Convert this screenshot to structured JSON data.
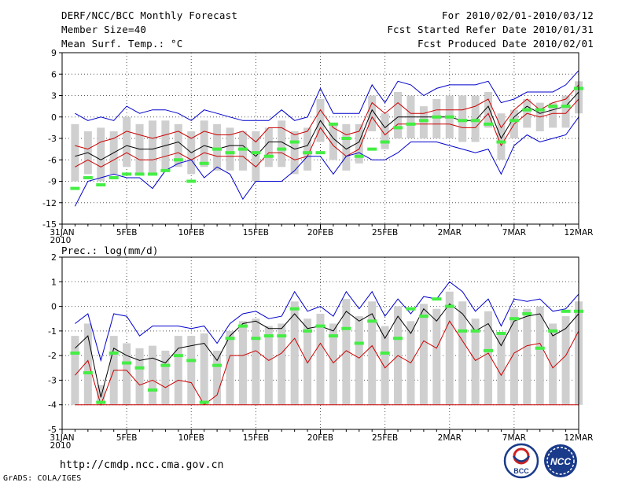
{
  "header": {
    "title": "DERF/NCC/BCC Monthly Forecast",
    "member_size": "Member Size=40",
    "variable": "Mean Surf. Temp.: °C",
    "period": "For 2010/02/01-2010/03/12",
    "started": "Fcst Started Refer Date 2010/01/31",
    "produced": "Fcst Produced Date 2010/02/01"
  },
  "footer": {
    "url": "http://cmdp.ncc.cma.gov.cn",
    "grads": "GrADS: COLA/IGES",
    "logo1_text": "BCC",
    "logo2_text": "NCC"
  },
  "colors": {
    "box": "#cfcfcf",
    "mean": "#000000",
    "ensemble_low": "#cc0000",
    "extreme": "#0000cc",
    "observed": "#44ee44",
    "grid": "#555555"
  },
  "x_ticks": [
    {
      "day": 0,
      "label": "31JAN",
      "sub": "2010"
    },
    {
      "day": 5,
      "label": "5FEB"
    },
    {
      "day": 10,
      "label": "10FEB"
    },
    {
      "day": 15,
      "label": "15FEB"
    },
    {
      "day": 20,
      "label": "20FEB"
    },
    {
      "day": 25,
      "label": "25FEB"
    },
    {
      "day": 30,
      "label": "2MAR"
    },
    {
      "day": 35,
      "label": "7MAR"
    },
    {
      "day": 40,
      "label": "12MAR"
    }
  ],
  "chart_data": [
    {
      "type": "line",
      "title": "Mean Surf. Temp.: °C",
      "ylim": [
        -15,
        9
      ],
      "yticks": [
        -15,
        -12,
        -9,
        -6,
        -3,
        0,
        3,
        6,
        9
      ],
      "grid": true,
      "x": [
        1,
        2,
        3,
        4,
        5,
        6,
        7,
        8,
        9,
        10,
        11,
        12,
        13,
        14,
        15,
        16,
        17,
        18,
        19,
        20,
        21,
        22,
        23,
        24,
        25,
        26,
        27,
        28,
        29,
        30,
        31,
        32,
        33,
        34,
        35,
        36,
        37,
        38,
        39,
        40
      ],
      "series": [
        {
          "name": "max",
          "values": [
            0.5,
            -0.5,
            0,
            -0.5,
            1.5,
            0.5,
            1,
            1,
            0.5,
            -0.5,
            1,
            0.5,
            0,
            -0.5,
            -0.5,
            -0.5,
            1,
            -0.5,
            0,
            4,
            0.5,
            0.5,
            0.5,
            4.5,
            2,
            5,
            4.5,
            3,
            4,
            4.5,
            4.5,
            4.5,
            5,
            2,
            2.5,
            3.5,
            3.5,
            3.5,
            4.5,
            6.5
          ]
        },
        {
          "name": "upper",
          "values": [
            -4,
            -4.5,
            -3.5,
            -3,
            -2,
            -2.5,
            -3,
            -2.5,
            -2,
            -3,
            -2,
            -2.5,
            -2.5,
            -2,
            -3.5,
            -1.5,
            -1.5,
            -2.5,
            -2,
            1,
            -1.5,
            -2.5,
            -2,
            2,
            0.5,
            2,
            0.5,
            0.5,
            1,
            1,
            1,
            1.5,
            2.5,
            -1.5,
            1,
            2.5,
            1,
            2,
            2.5,
            4.5
          ]
        },
        {
          "name": "mean",
          "values": [
            -5.5,
            -5,
            -6,
            -5,
            -4,
            -4.5,
            -4.5,
            -4,
            -3.5,
            -5,
            -4,
            -4.5,
            -4,
            -4,
            -5.5,
            -3.5,
            -3.5,
            -4.5,
            -4,
            -0.5,
            -3,
            -4.5,
            -3.5,
            1,
            -1.5,
            0,
            0,
            0,
            0,
            0,
            -0.5,
            -0.5,
            1.5,
            -3,
            0,
            1.5,
            0.5,
            1,
            1.5,
            3.5
          ]
        },
        {
          "name": "lower",
          "values": [
            -7,
            -6,
            -7,
            -6,
            -5,
            -6,
            -6,
            -5.5,
            -5,
            -6,
            -5,
            -5.5,
            -5.5,
            -5.5,
            -7,
            -5,
            -5,
            -6,
            -5.5,
            -1.5,
            -4,
            -5.5,
            -4.5,
            0,
            -2.5,
            -1,
            -1,
            -1,
            -1,
            -1,
            -1.5,
            -1.5,
            0.5,
            -4,
            -1,
            0.5,
            0,
            0.5,
            0.5,
            2.5
          ]
        },
        {
          "name": "min",
          "values": [
            -12.5,
            -9,
            -8.5,
            -8,
            -8.5,
            -8.5,
            -10,
            -7.5,
            -6.5,
            -6,
            -8.5,
            -7,
            -8,
            -11.5,
            -9,
            -9,
            -9,
            -7.5,
            -5.5,
            -5.5,
            -8,
            -5.5,
            -5,
            -6,
            -6,
            -5,
            -3.5,
            -3.5,
            -3.5,
            -4,
            -4.5,
            -5,
            -4.5,
            -8,
            -4,
            -2.5,
            -3.5,
            -3,
            -2.5,
            0
          ]
        },
        {
          "name": "observed",
          "values": [
            -10,
            -8.5,
            -9.5,
            -8.5,
            -8,
            -8,
            -8,
            -7.5,
            -6,
            -9,
            -6.5,
            -4.5,
            -5,
            -4.5,
            -5,
            -5.5,
            -4.5,
            -3.5,
            -5,
            -5,
            -1,
            -3,
            -5.5,
            -4.5,
            -3.5,
            -1.5,
            -1,
            -0.5,
            0,
            0,
            -0.5,
            -0.5,
            -1,
            -3.5,
            -0.5,
            1,
            1,
            1.5,
            1.5,
            4
          ]
        }
      ]
    },
    {
      "type": "line",
      "title": "Prec.: log(mm/d)",
      "ylim": [
        -5,
        2
      ],
      "yticks": [
        -5,
        -4,
        -3,
        -2,
        -1,
        0,
        1,
        2
      ],
      "grid": true,
      "x": [
        1,
        2,
        3,
        4,
        5,
        6,
        7,
        8,
        9,
        10,
        11,
        12,
        13,
        14,
        15,
        16,
        17,
        18,
        19,
        20,
        21,
        22,
        23,
        24,
        25,
        26,
        27,
        28,
        29,
        30,
        31,
        32,
        33,
        34,
        35,
        36,
        37,
        38,
        39,
        40
      ],
      "series": [
        {
          "name": "max",
          "values": [
            -0.7,
            -0.3,
            -2.2,
            -0.3,
            -0.4,
            -1.2,
            -0.8,
            -0.8,
            -0.8,
            -0.9,
            -0.8,
            -1.5,
            -0.7,
            -0.3,
            -0.2,
            -0.5,
            -0.4,
            0.6,
            -0.2,
            0,
            -0.4,
            0.6,
            -0.1,
            0.6,
            -0.4,
            0.3,
            -0.3,
            0.4,
            0.3,
            1,
            0.6,
            -0.2,
            0.3,
            -0.8,
            0.3,
            0.2,
            0.3,
            -0.2,
            -0.1,
            0.5
          ]
        },
        {
          "name": "mean",
          "values": [
            -1.7,
            -1.2,
            -3.7,
            -1.7,
            -2,
            -2.2,
            -2.1,
            -2.3,
            -1.7,
            -1.6,
            -1.5,
            -2.2,
            -1.2,
            -0.7,
            -0.6,
            -0.9,
            -0.9,
            -0.3,
            -0.9,
            -0.8,
            -1,
            -0.2,
            -0.6,
            -0.3,
            -1.3,
            -0.4,
            -1.1,
            -0.1,
            -0.6,
            0.1,
            -0.3,
            -1,
            -0.7,
            -1.6,
            -0.6,
            -0.4,
            -0.3,
            -1.2,
            -0.9,
            -0.3
          ]
        },
        {
          "name": "lower",
          "values": [
            -2.8,
            -2.2,
            -4,
            -2.6,
            -2.6,
            -3.2,
            -3,
            -3.3,
            -3,
            -3.1,
            -4,
            -3.6,
            -2,
            -2,
            -1.8,
            -2.2,
            -1.9,
            -1.3,
            -2.3,
            -1.5,
            -2.3,
            -1.8,
            -2.1,
            -1.6,
            -2.5,
            -2,
            -2.3,
            -1.4,
            -1.7,
            -0.6,
            -1.4,
            -2.2,
            -1.9,
            -2.8,
            -1.9,
            -1.6,
            -1.5,
            -2.5,
            -2,
            -1
          ]
        },
        {
          "name": "min",
          "values": [
            -4,
            -4,
            -4,
            -4,
            -4,
            -4,
            -4,
            -4,
            -4,
            -4,
            -4,
            -4,
            -4,
            -4,
            -4,
            -4,
            -4,
            -4,
            -4,
            -4,
            -4,
            -4,
            -4,
            -4,
            -4,
            -4,
            -4,
            -4,
            -4,
            -4,
            -4,
            -4,
            -4,
            -4,
            -4,
            -4,
            -4,
            -4,
            -4,
            -4
          ]
        },
        {
          "name": "observed",
          "values": [
            -1.9,
            -2.7,
            -3.9,
            -1.9,
            -2.3,
            -2.5,
            -3.4,
            -2.4,
            -2,
            -2.2,
            -3.9,
            -2.4,
            -1.3,
            -0.8,
            -1.3,
            -1.2,
            -1.2,
            -0.1,
            -1,
            -0.8,
            -1.2,
            -0.9,
            -1.5,
            -0.6,
            -1.9,
            -1.3,
            -0.1,
            -0.4,
            0.3,
            0,
            -1,
            -1,
            -1.8,
            -1.1,
            -0.5,
            -0.3,
            -1.7,
            -1,
            -0.2,
            -0.2
          ]
        }
      ]
    }
  ]
}
